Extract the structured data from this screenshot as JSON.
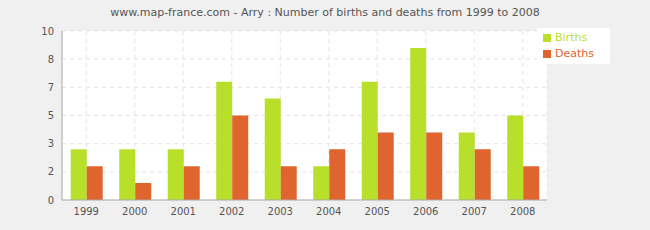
{
  "chart_data": {
    "type": "bar",
    "title": "www.map-france.com - Arry : Number of births and deaths from 1999 to 2008",
    "categories": [
      "1999",
      "2000",
      "2001",
      "2002",
      "2003",
      "2004",
      "2005",
      "2006",
      "2007",
      "2008"
    ],
    "series": [
      {
        "name": "Births",
        "color": "#b8e02b",
        "values": [
          3,
          3,
          3,
          7,
          6,
          2,
          7,
          9,
          4,
          5
        ]
      },
      {
        "name": "Deaths",
        "color": "#e0642e",
        "values": [
          2,
          1,
          2,
          5,
          2,
          3,
          4,
          4,
          3,
          2
        ]
      }
    ],
    "ylim": [
      0,
      10
    ],
    "yticks": [
      0,
      {
        "value": 1.667,
        "label": "2"
      },
      {
        "value": 3.333,
        "label": "3"
      },
      5,
      {
        "value": 6.667,
        "label": "7"
      },
      {
        "value": 8.333,
        "label": "8"
      },
      10
    ],
    "grid": true,
    "legend": "upper right"
  }
}
